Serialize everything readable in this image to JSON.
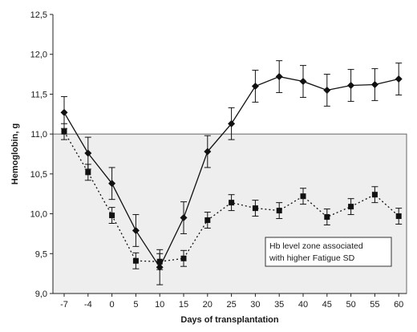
{
  "chart_data": {
    "type": "line",
    "xlabel": "Days of transplantation",
    "ylabel": "Hemoglobin, g",
    "ylim": [
      9.0,
      12.5
    ],
    "y_ticks": [
      "9,0",
      "9,5",
      "10,0",
      "10,5",
      "11,0",
      "11,5",
      "12,0",
      "12,5"
    ],
    "y_tick_values": [
      9.0,
      9.5,
      10.0,
      10.5,
      11.0,
      11.5,
      12.0,
      12.5
    ],
    "categories": [
      "-7",
      "-4",
      "0",
      "5",
      "10",
      "15",
      "20",
      "25",
      "30",
      "35",
      "40",
      "45",
      "50",
      "55",
      "60"
    ],
    "shaded_zone": {
      "ymin": 9.0,
      "ymax": 11.0,
      "color": "#eeeeee"
    },
    "annotation": {
      "lines": [
        "Hb level zone associated",
        "with higher Fatigue SD"
      ]
    },
    "series": [
      {
        "style": "solid",
        "marker": "diamond",
        "color": "#111111",
        "values": [
          11.27,
          10.76,
          10.38,
          9.79,
          9.33,
          9.95,
          10.78,
          11.13,
          11.6,
          11.72,
          11.66,
          11.55,
          11.61,
          11.62,
          11.69
        ],
        "errors": [
          0.2,
          0.2,
          0.2,
          0.2,
          0.22,
          0.2,
          0.2,
          0.2,
          0.2,
          0.2,
          0.2,
          0.2,
          0.2,
          0.2,
          0.2
        ]
      },
      {
        "style": "dotted",
        "marker": "square",
        "color": "#111111",
        "values": [
          11.03,
          10.52,
          9.98,
          9.41,
          9.4,
          9.44,
          9.92,
          10.14,
          10.07,
          10.04,
          10.22,
          9.96,
          10.09,
          10.24,
          9.97
        ],
        "errors": [
          0.1,
          0.1,
          0.1,
          0.1,
          0.1,
          0.1,
          0.1,
          0.1,
          0.1,
          0.1,
          0.1,
          0.1,
          0.1,
          0.1,
          0.1
        ]
      }
    ]
  }
}
